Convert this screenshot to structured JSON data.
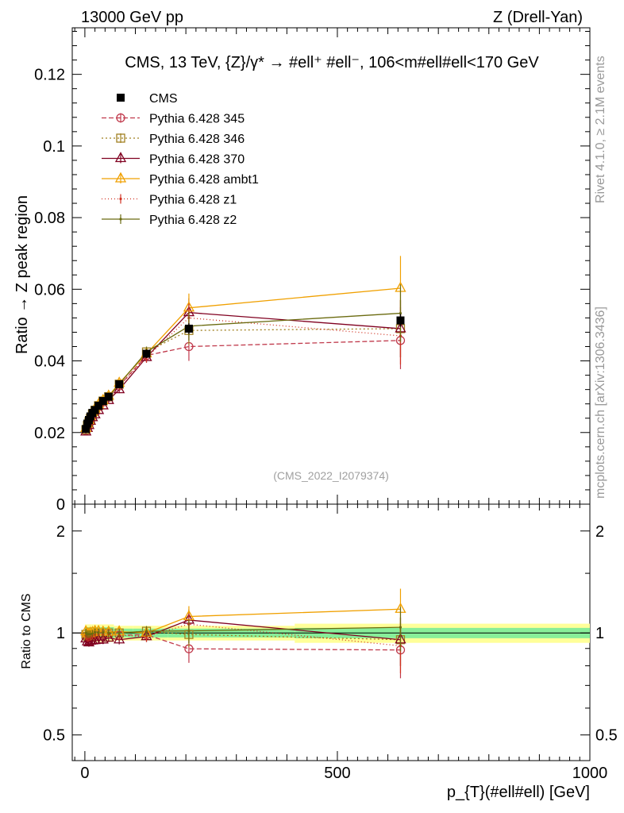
{
  "header": {
    "energy": "13000 GeV pp",
    "process": "Z (Drell-Yan)"
  },
  "side_labels": {
    "rivet": "Rivet 4.1.0, ≥ 2.1M events",
    "mcplots": "mcplots.cern.ch [arXiv:1306.3436]"
  },
  "watermark": "(CMS_2022_I2079374)",
  "main_title": "CMS, 13 TeV, {Z}/γ* → #ell⁺ #ell⁻, 106<m#ell#ell<170 GeV",
  "chart_data": {
    "type": "line",
    "title": "CMS, 13 TeV, {Z}/γ* → #ell⁺ #ell⁻, 106<m#ell#ell<170 GeV",
    "xlabel": "p_{T}(#ell#ell) [GeV]",
    "ylabel": "Ratio → Z peak region",
    "ratio_ylabel": "Ratio to CMS",
    "xlim": [
      -25,
      1000
    ],
    "ylim": [
      0,
      0.133
    ],
    "ratio_ylim": [
      0.42,
      2.4
    ],
    "x_ticks": [
      "0",
      "500",
      "1000"
    ],
    "y_ticks": [
      "0",
      "0.02",
      "0.04",
      "0.06",
      "0.08",
      "0.1",
      "0.12"
    ],
    "ratio_ticks": [
      "0.5",
      "1",
      "2"
    ],
    "legend_position": "top-left",
    "x": [
      2,
      5,
      8,
      11,
      15,
      20,
      27,
      36,
      47,
      68,
      122,
      206,
      625
    ],
    "data": {
      "name": "CMS",
      "values": [
        0.021,
        0.0225,
        0.0235,
        0.0245,
        0.0255,
        0.0263,
        0.0275,
        0.0288,
        0.03,
        0.0335,
        0.042,
        0.049,
        0.0513
      ],
      "errors": [
        0.001,
        0.001,
        0.001,
        0.001,
        0.001,
        0.001,
        0.001,
        0.001,
        0.001,
        0.001,
        0.0012,
        0.0015,
        0.0018
      ]
    },
    "band_inner_halfwidth": [
      0.04,
      0.04,
      0.04,
      0.04,
      0.04,
      0.04,
      0.04,
      0.04,
      0.04,
      0.03,
      0.03,
      0.03,
      0.035
    ],
    "band_outer_halfwidth": [
      0.06,
      0.06,
      0.06,
      0.06,
      0.06,
      0.06,
      0.06,
      0.06,
      0.06,
      0.05,
      0.05,
      0.05,
      0.065
    ],
    "series": [
      {
        "name": "Pythia 6.428 345",
        "color": "#c0394b",
        "dash": "6,3",
        "marker": "circle",
        "values": [
          0.0205,
          0.0218,
          0.0228,
          0.0238,
          0.025,
          0.026,
          0.0272,
          0.0285,
          0.0298,
          0.033,
          0.0415,
          0.044,
          0.0457
        ],
        "errors": [
          0.0006,
          0.0006,
          0.0006,
          0.0006,
          0.0006,
          0.0007,
          0.0007,
          0.0008,
          0.0008,
          0.001,
          0.0015,
          0.004,
          0.008
        ]
      },
      {
        "name": "Pythia 6.428 346",
        "color": "#a08020",
        "dash": "2,3",
        "marker": "square",
        "values": [
          0.0208,
          0.022,
          0.023,
          0.024,
          0.0252,
          0.0262,
          0.0275,
          0.0288,
          0.03,
          0.0335,
          0.0425,
          0.0485,
          0.049
        ],
        "errors": [
          0.0006,
          0.0006,
          0.0006,
          0.0006,
          0.0006,
          0.0007,
          0.0007,
          0.0008,
          0.0008,
          0.001,
          0.0015,
          0.004,
          0.008
        ]
      },
      {
        "name": "Pythia 6.428 370",
        "color": "#800020",
        "dash": "",
        "marker": "triangle",
        "values": [
          0.0202,
          0.0212,
          0.022,
          0.0232,
          0.0242,
          0.025,
          0.0262,
          0.0275,
          0.029,
          0.032,
          0.041,
          0.0535,
          0.049
        ],
        "errors": [
          0.0006,
          0.0006,
          0.0006,
          0.0006,
          0.0006,
          0.0007,
          0.0007,
          0.0008,
          0.0008,
          0.001,
          0.0015,
          0.004,
          0.008
        ]
      },
      {
        "name": "Pythia 6.428 ambt1",
        "color": "#f0a000",
        "dash": "",
        "marker": "triangle",
        "values": [
          0.0212,
          0.0224,
          0.0234,
          0.0245,
          0.0256,
          0.0266,
          0.0278,
          0.029,
          0.0302,
          0.0338,
          0.042,
          0.0548,
          0.0603
        ],
        "errors": [
          0.0006,
          0.0006,
          0.0006,
          0.0006,
          0.0006,
          0.0007,
          0.0007,
          0.0008,
          0.0008,
          0.001,
          0.0015,
          0.004,
          0.009
        ]
      },
      {
        "name": "Pythia 6.428 z1",
        "color": "#d03020",
        "dash": "1,3",
        "marker": "dot",
        "values": [
          0.0206,
          0.0218,
          0.0228,
          0.0238,
          0.025,
          0.026,
          0.0272,
          0.0285,
          0.0298,
          0.033,
          0.041,
          0.052,
          0.047
        ],
        "errors": [
          0.0006,
          0.0006,
          0.0006,
          0.0006,
          0.0006,
          0.0007,
          0.0007,
          0.0008,
          0.0008,
          0.001,
          0.0015,
          0.004,
          0.008
        ]
      },
      {
        "name": "Pythia 6.428 z2",
        "color": "#6b6b10",
        "dash": "",
        "marker": "dot",
        "values": [
          0.021,
          0.0223,
          0.0233,
          0.0243,
          0.0254,
          0.0264,
          0.0276,
          0.0289,
          0.03,
          0.0335,
          0.0425,
          0.0497,
          0.0533
        ],
        "errors": [
          0.0006,
          0.0006,
          0.0006,
          0.0006,
          0.0006,
          0.0007,
          0.0007,
          0.0008,
          0.0008,
          0.001,
          0.0015,
          0.004,
          0.008
        ]
      }
    ]
  }
}
